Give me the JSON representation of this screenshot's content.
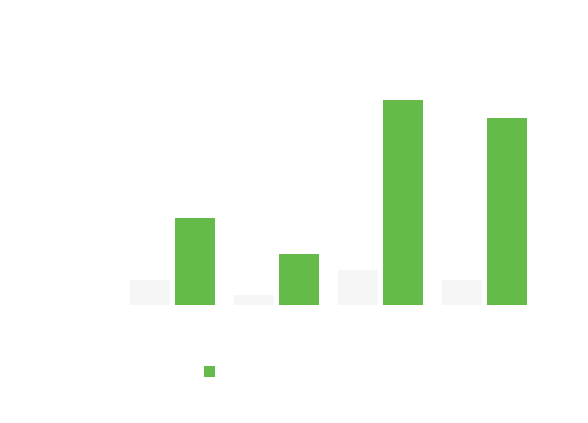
{
  "chart_data": {
    "type": "bar",
    "categories": [
      null,
      null,
      null,
      null
    ],
    "series": [
      {
        "color": "#f6f6f6",
        "values": [
          25,
          10,
          35,
          25
        ]
      },
      {
        "color": "#64bb4a",
        "values": [
          87,
          51,
          205,
          187
        ]
      }
    ],
    "ylim": [
      0,
      250
    ]
  }
}
